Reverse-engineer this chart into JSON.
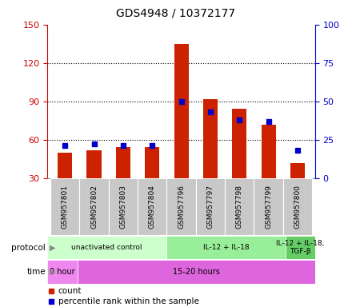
{
  "title": "GDS4948 / 10372177",
  "samples": [
    "GSM957801",
    "GSM957802",
    "GSM957803",
    "GSM957804",
    "GSM957796",
    "GSM957797",
    "GSM957798",
    "GSM957799",
    "GSM957800"
  ],
  "count_values": [
    50,
    52,
    54,
    54,
    135,
    92,
    84,
    72,
    42
  ],
  "percentile_values": [
    21,
    22,
    21,
    21,
    50,
    43,
    38,
    37,
    18
  ],
  "left_yaxis": {
    "min": 30,
    "max": 150,
    "ticks": [
      30,
      60,
      90,
      120,
      150
    ],
    "color": "#cc0000"
  },
  "right_yaxis": {
    "min": 0,
    "max": 100,
    "ticks": [
      0,
      25,
      50,
      75,
      100
    ],
    "color": "#0000cc"
  },
  "bar_color": "#cc2200",
  "percentile_color": "#0000cc",
  "protocol_groups": [
    {
      "label": "unactivated control",
      "start": 0,
      "end": 4,
      "color": "#ccffcc"
    },
    {
      "label": "IL-12 + IL-18",
      "start": 4,
      "end": 8,
      "color": "#99ee99"
    },
    {
      "label": "IL-12 + IL-18,\nTGF-β",
      "start": 8,
      "end": 9,
      "color": "#66cc66"
    }
  ],
  "time_groups": [
    {
      "label": "0 hour",
      "start": 0,
      "end": 1,
      "color": "#ee88ee"
    },
    {
      "label": "15-20 hours",
      "start": 1,
      "end": 9,
      "color": "#dd66dd"
    }
  ],
  "legend_items": [
    {
      "label": "count",
      "color": "#cc2200"
    },
    {
      "label": "percentile rank within the sample",
      "color": "#0000cc"
    }
  ],
  "tick_bg_color": "#c8c8c8",
  "fig_width": 4.4,
  "fig_height": 3.84,
  "dpi": 100
}
